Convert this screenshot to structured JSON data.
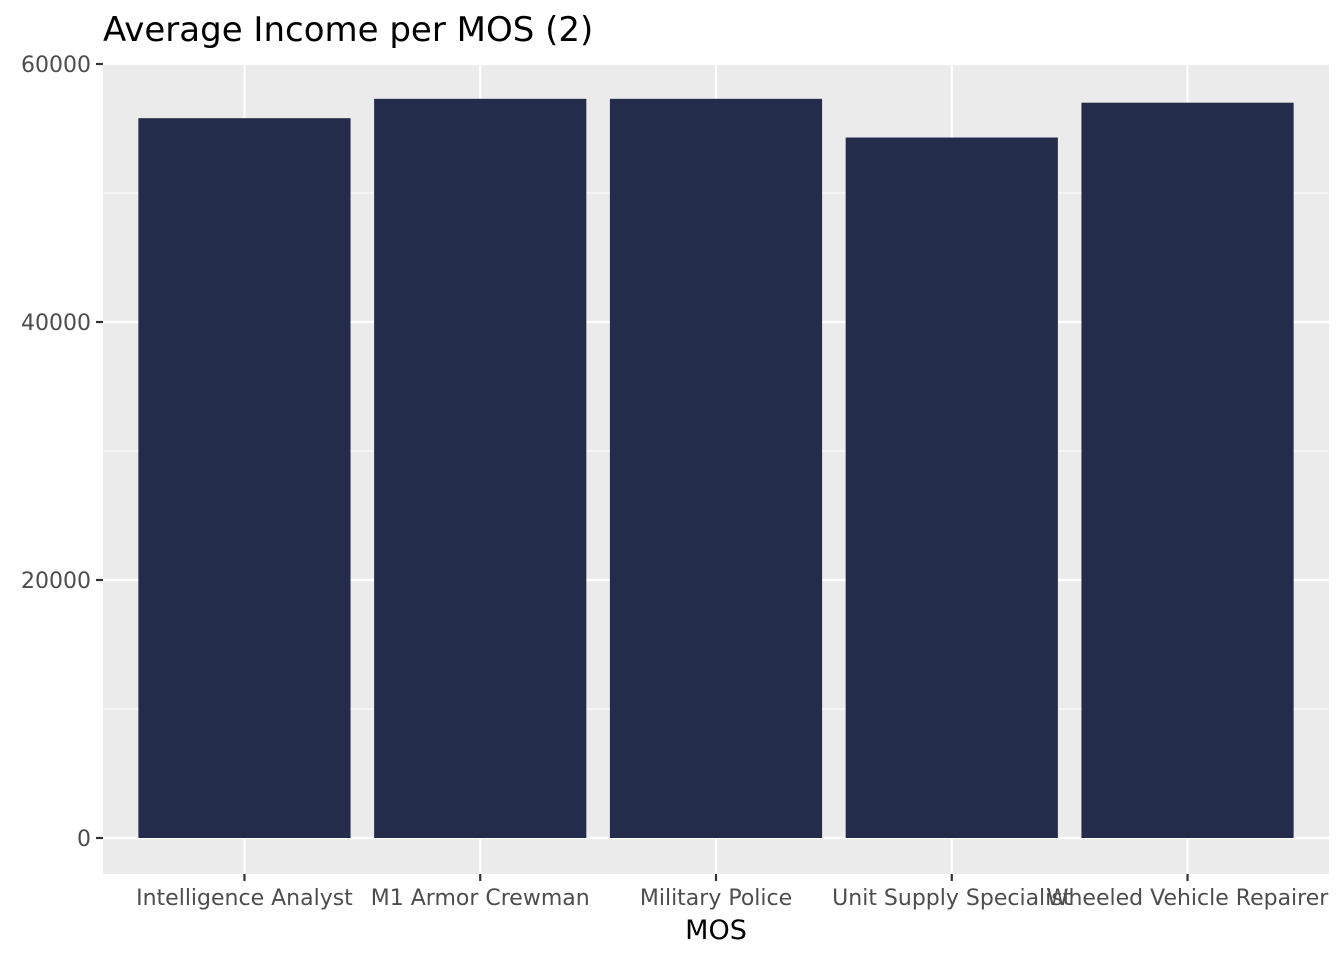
{
  "chart_data": {
    "type": "bar",
    "title": "Average Income per MOS (2)",
    "xlabel": "MOS",
    "ylabel": "",
    "categories": [
      "Intelligence Analyst",
      "M1 Armor Crewman",
      "Military Police",
      "Unit Supply Specialist",
      "Wheeled Vehicle Repairer"
    ],
    "values": [
      55800,
      57300,
      57300,
      54300,
      57000
    ],
    "ylim": [
      0,
      60000
    ],
    "yticks": [
      0,
      20000,
      40000,
      60000
    ],
    "ytick_labels": [
      "0",
      "20000",
      "40000",
      "60000"
    ],
    "grid": true,
    "legend": "none",
    "colors": {
      "bar": "#242c4b",
      "panel_background": "#ebebeb",
      "grid": "#ffffff",
      "tick_label": "#4d4d4d",
      "tick_mark": "#333333"
    }
  }
}
